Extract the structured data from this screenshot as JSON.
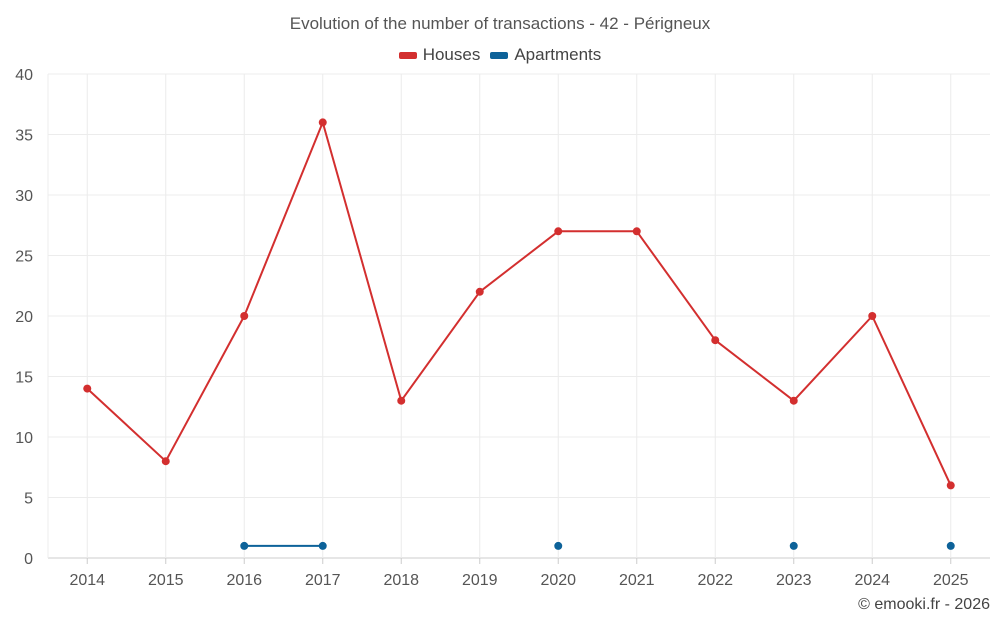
{
  "chart_data": {
    "type": "line",
    "title": "Evolution of the number of transactions - 42 - Périgneux",
    "categories": [
      "2014",
      "2015",
      "2016",
      "2017",
      "2018",
      "2019",
      "2020",
      "2021",
      "2022",
      "2023",
      "2024",
      "2025"
    ],
    "series": [
      {
        "name": "Houses",
        "color": "#d32f2f",
        "values": [
          14,
          8,
          20,
          36,
          13,
          22,
          27,
          27,
          18,
          13,
          20,
          6
        ]
      },
      {
        "name": "Apartments",
        "color": "#0d6299",
        "values": [
          null,
          null,
          1,
          1,
          null,
          null,
          1,
          null,
          null,
          1,
          null,
          1
        ]
      }
    ],
    "ylim": [
      0,
      40
    ],
    "yticks": [
      0,
      5,
      10,
      15,
      20,
      25,
      30,
      35,
      40
    ],
    "grid": true,
    "legend": "top-center"
  },
  "watermark": "© emooki.fr - 2026"
}
